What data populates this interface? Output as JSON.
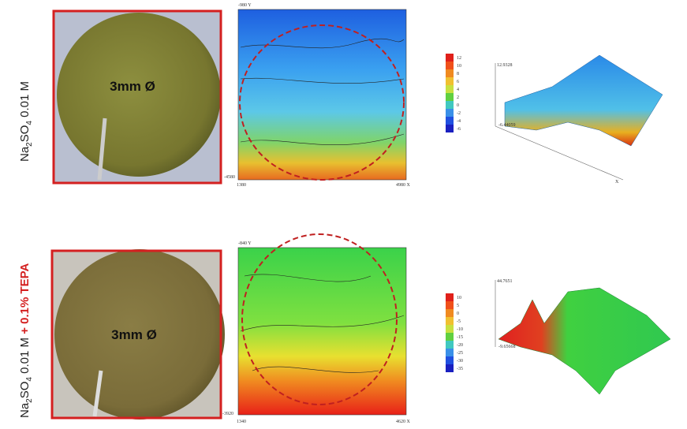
{
  "panels": [
    {
      "label": {
        "a": "Na",
        "b": "2",
        "c": "SO",
        "d": "4",
        "e": " 0.01 M"
      },
      "photo_label": "3mm Ø",
      "map": {
        "top": "-980 Y",
        "bottom": "-4580",
        "left": "1380",
        "right": "4980 X"
      },
      "colorbar": [
        12,
        10,
        8,
        6,
        4,
        2,
        0,
        -2,
        -4,
        -6
      ],
      "surface": {
        "max": "12.9328",
        "min": "-6.44059",
        "axis": "X"
      }
    },
    {
      "label": {
        "a": "Na",
        "b": "2",
        "c": "SO",
        "d": "4",
        "e": " 0.01 M",
        "f": " + 0.1% TEPA"
      },
      "photo_label": "3mm Ø",
      "map": {
        "top": "-840 Y",
        "bottom": "-3920",
        "left": "1340",
        "right": "4620 X"
      },
      "colorbar": [
        10,
        5,
        0,
        -5,
        -10,
        -15,
        -20,
        -25,
        -30,
        -35
      ],
      "surface": {
        "max": "44.7651",
        "min": "-9.65668"
      }
    }
  ]
}
